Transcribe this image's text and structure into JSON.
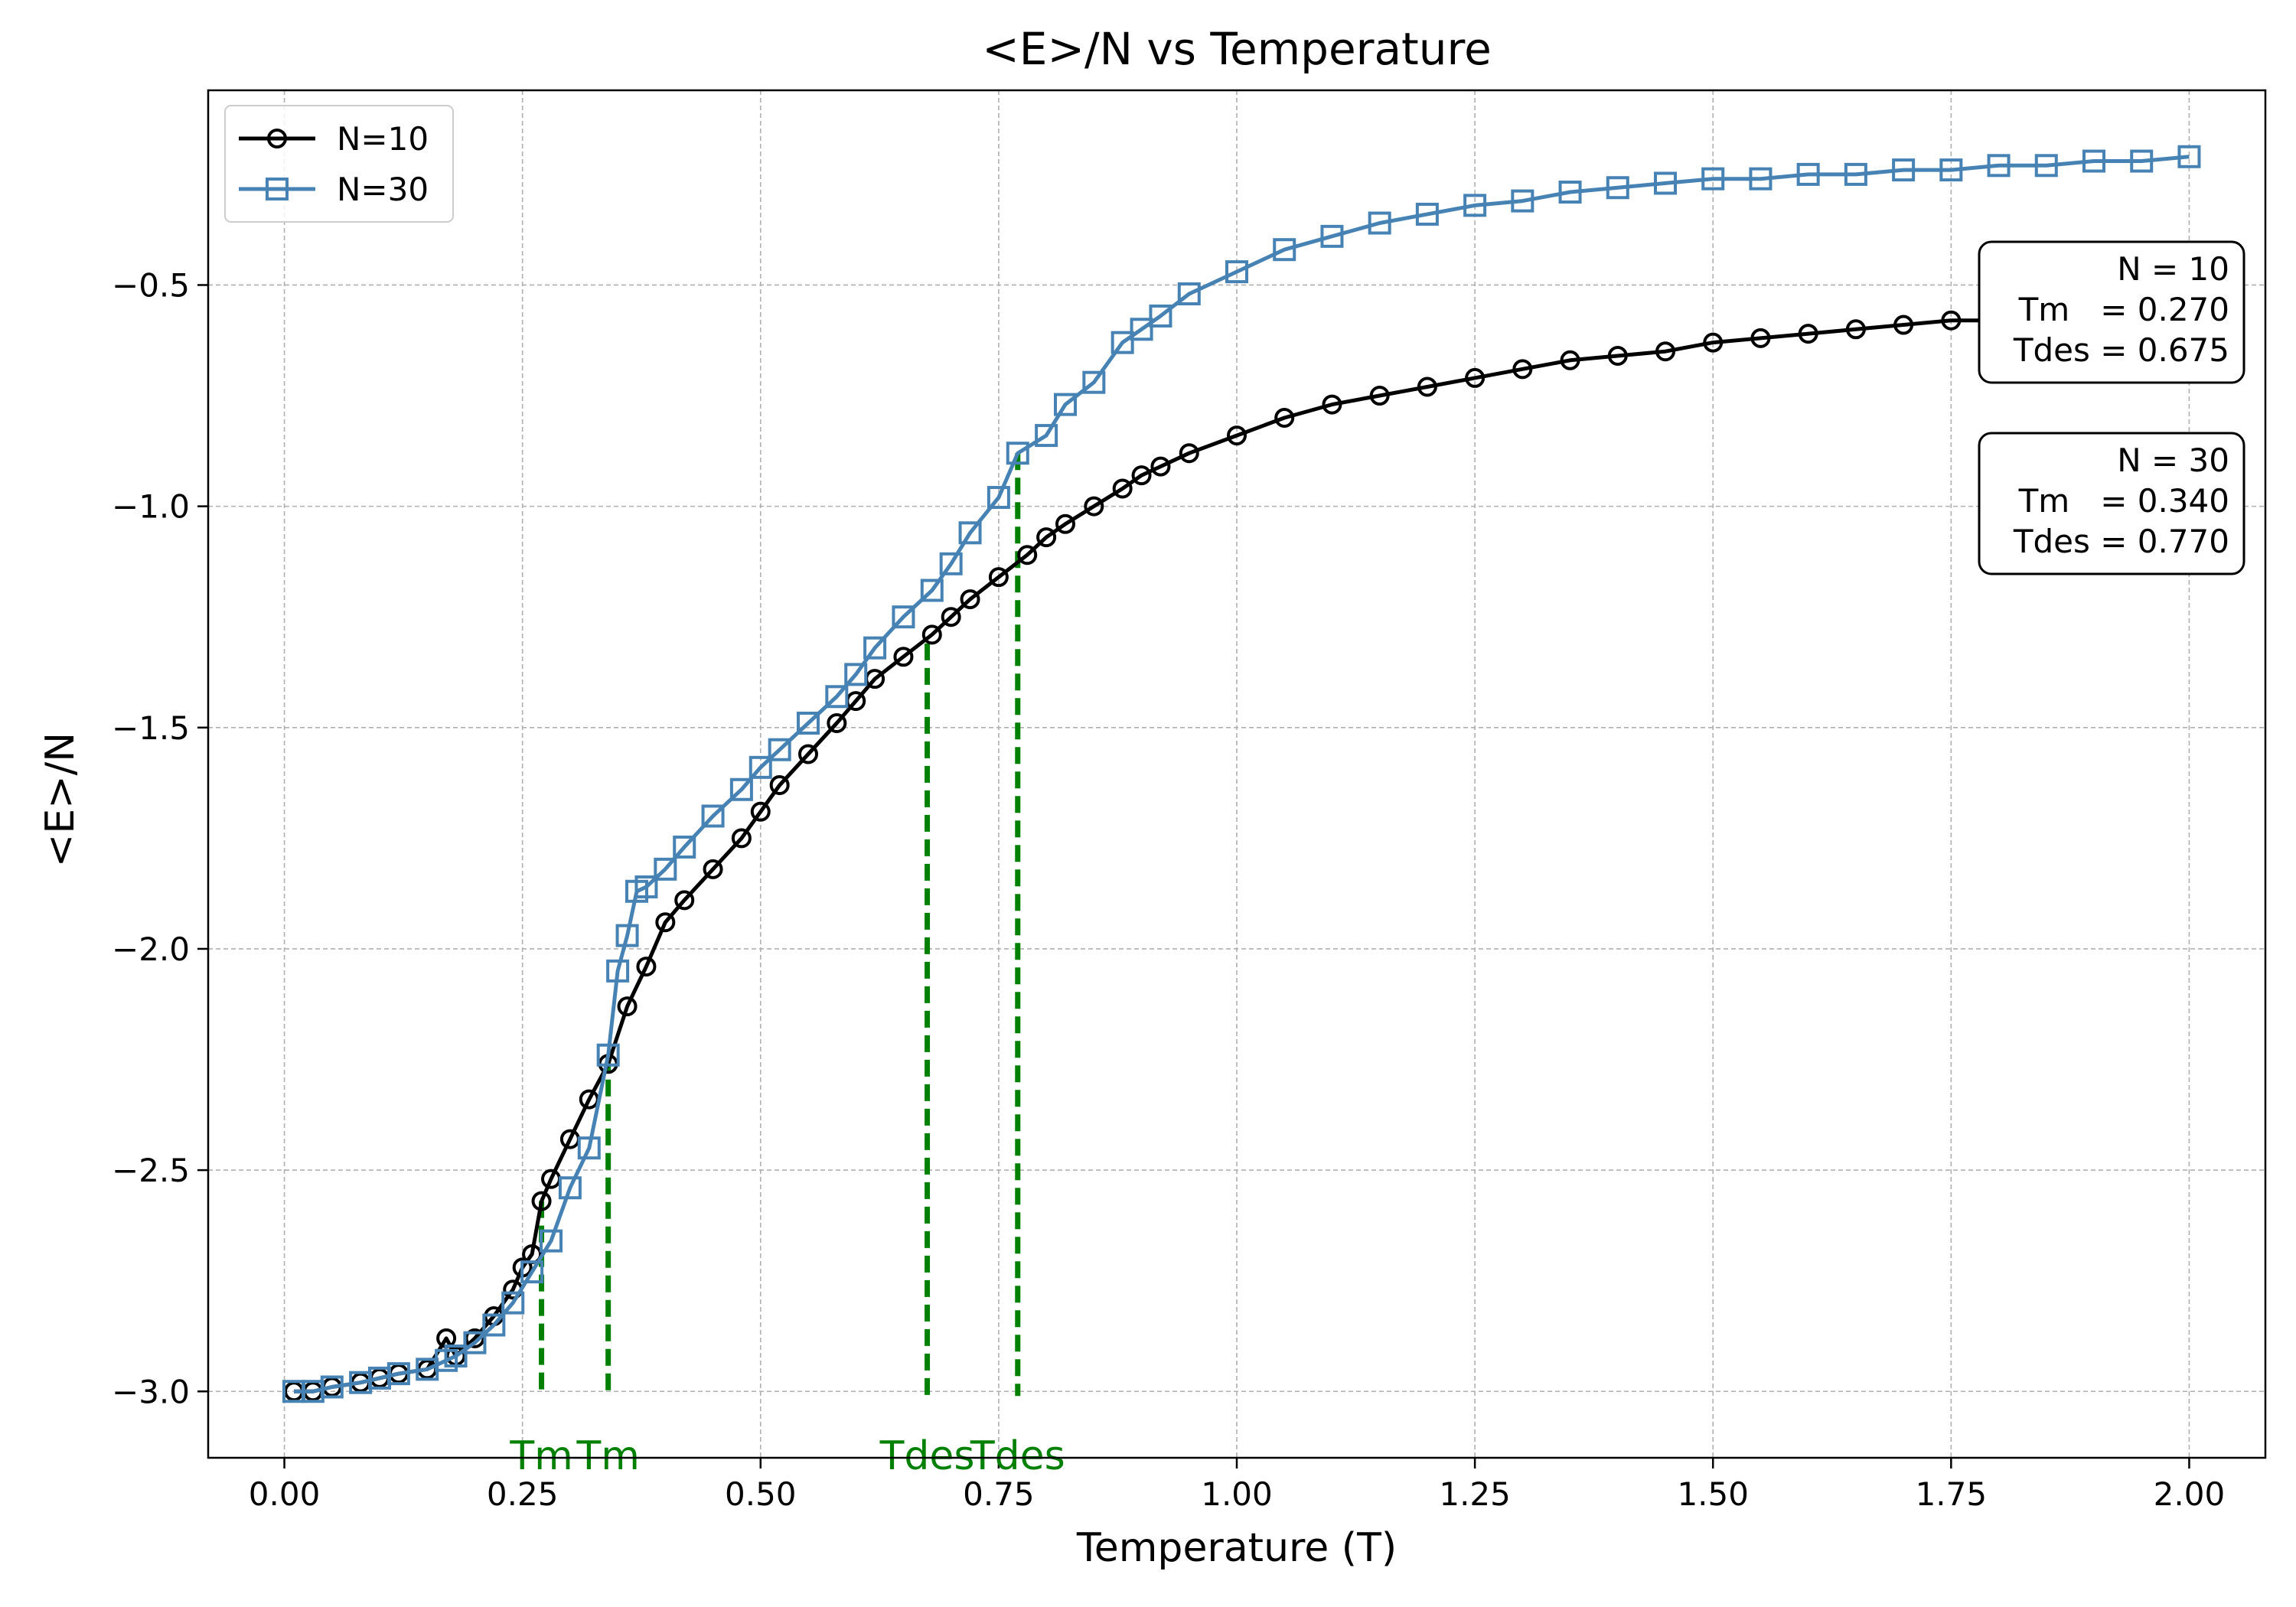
{
  "chart_data": {
    "type": "line",
    "title": "<E>/N vs Temperature",
    "xlabel": "Temperature (T)",
    "ylabel": "<E>/N",
    "xlim": [
      -0.08,
      2.08
    ],
    "ylim": [
      -3.15,
      -0.06
    ],
    "xticks": [
      0.0,
      0.25,
      0.5,
      0.75,
      1.0,
      1.25,
      1.5,
      1.75,
      2.0
    ],
    "xtick_labels": [
      "0.00",
      "0.25",
      "0.50",
      "0.75",
      "1.00",
      "1.25",
      "1.50",
      "1.75",
      "2.00"
    ],
    "yticks": [
      -3.0,
      -2.5,
      -2.0,
      -1.5,
      -1.0,
      -0.5
    ],
    "ytick_labels": [
      "−3.0",
      "−2.5",
      "−2.0",
      "−1.5",
      "−1.0",
      "−0.5"
    ],
    "grid": true,
    "legend_position": "top-left",
    "series": [
      {
        "name": "N=10",
        "color": "#000000",
        "marker": "circle",
        "x": [
          0.01,
          0.03,
          0.05,
          0.08,
          0.1,
          0.12,
          0.15,
          0.17,
          0.18,
          0.2,
          0.22,
          0.24,
          0.25,
          0.26,
          0.27,
          0.28,
          0.3,
          0.32,
          0.34,
          0.36,
          0.38,
          0.4,
          0.42,
          0.45,
          0.48,
          0.5,
          0.52,
          0.55,
          0.58,
          0.6,
          0.62,
          0.65,
          0.68,
          0.7,
          0.72,
          0.75,
          0.78,
          0.8,
          0.82,
          0.85,
          0.88,
          0.9,
          0.92,
          0.95,
          1.0,
          1.05,
          1.1,
          1.15,
          1.2,
          1.25,
          1.3,
          1.35,
          1.4,
          1.45,
          1.5,
          1.55,
          1.6,
          1.65,
          1.7,
          1.75,
          1.8
        ],
        "y": [
          -3.0,
          -3.0,
          -2.99,
          -2.98,
          -2.97,
          -2.96,
          -2.95,
          -2.88,
          -2.92,
          -2.88,
          -2.83,
          -2.77,
          -2.72,
          -2.69,
          -2.57,
          -2.52,
          -2.43,
          -2.34,
          -2.26,
          -2.13,
          -2.04,
          -1.94,
          -1.89,
          -1.82,
          -1.75,
          -1.69,
          -1.63,
          -1.56,
          -1.49,
          -1.44,
          -1.39,
          -1.34,
          -1.29,
          -1.25,
          -1.21,
          -1.16,
          -1.11,
          -1.07,
          -1.04,
          -1.0,
          -0.96,
          -0.93,
          -0.91,
          -0.88,
          -0.84,
          -0.8,
          -0.77,
          -0.75,
          -0.73,
          -0.71,
          -0.69,
          -0.67,
          -0.66,
          -0.65,
          -0.63,
          -0.62,
          -0.61,
          -0.6,
          -0.59,
          -0.58,
          -0.58
        ]
      },
      {
        "name": "N=30",
        "color": "#4682b4",
        "marker": "square",
        "x": [
          0.01,
          0.03,
          0.05,
          0.08,
          0.1,
          0.12,
          0.15,
          0.17,
          0.18,
          0.2,
          0.22,
          0.24,
          0.26,
          0.28,
          0.3,
          0.32,
          0.34,
          0.35,
          0.36,
          0.37,
          0.38,
          0.4,
          0.42,
          0.45,
          0.48,
          0.5,
          0.52,
          0.55,
          0.58,
          0.6,
          0.62,
          0.65,
          0.68,
          0.7,
          0.72,
          0.75,
          0.77,
          0.8,
          0.82,
          0.85,
          0.88,
          0.9,
          0.92,
          0.95,
          1.0,
          1.05,
          1.1,
          1.15,
          1.2,
          1.25,
          1.3,
          1.35,
          1.4,
          1.45,
          1.5,
          1.55,
          1.6,
          1.65,
          1.7,
          1.75,
          1.8,
          1.85,
          1.9,
          1.95,
          2.0
        ],
        "y": [
          -3.0,
          -3.0,
          -2.99,
          -2.98,
          -2.97,
          -2.96,
          -2.95,
          -2.93,
          -2.92,
          -2.89,
          -2.85,
          -2.8,
          -2.73,
          -2.66,
          -2.54,
          -2.45,
          -2.24,
          -2.05,
          -1.97,
          -1.87,
          -1.86,
          -1.82,
          -1.77,
          -1.7,
          -1.64,
          -1.59,
          -1.55,
          -1.49,
          -1.43,
          -1.38,
          -1.32,
          -1.25,
          -1.19,
          -1.13,
          -1.06,
          -0.98,
          -0.88,
          -0.84,
          -0.77,
          -0.72,
          -0.63,
          -0.6,
          -0.57,
          -0.52,
          -0.47,
          -0.42,
          -0.39,
          -0.36,
          -0.34,
          -0.32,
          -0.31,
          -0.29,
          -0.28,
          -0.27,
          -0.26,
          -0.26,
          -0.25,
          -0.25,
          -0.24,
          -0.24,
          -0.23,
          -0.23,
          -0.22,
          -0.22,
          -0.21
        ]
      }
    ],
    "vlines": [
      {
        "x": 0.27,
        "y_top": -2.57,
        "label": "Tm"
      },
      {
        "x": 0.34,
        "y_top": -2.24,
        "label": "Tm"
      },
      {
        "x": 0.675,
        "y_top": -1.31,
        "label": "Tdes"
      },
      {
        "x": 0.77,
        "y_top": -0.88,
        "label": "Tdes"
      }
    ],
    "vline_color": "#008000",
    "info_boxes": [
      {
        "lines": [
          "N = 10",
          "Tm   = 0.270",
          "Tdes = 0.675"
        ]
      },
      {
        "lines": [
          "N = 30",
          "Tm   = 0.340",
          "Tdes = 0.770"
        ]
      }
    ]
  }
}
